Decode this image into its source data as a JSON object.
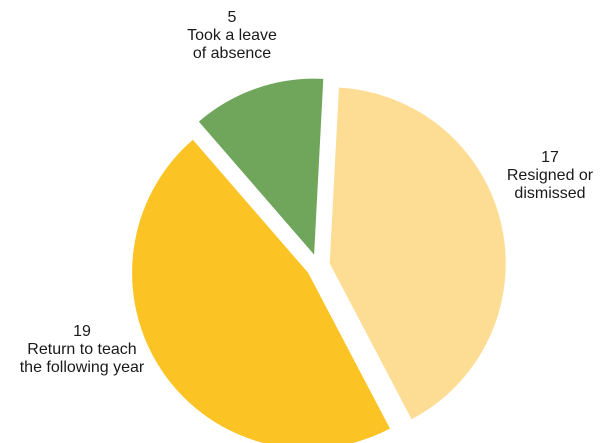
{
  "chart_data": {
    "type": "pie",
    "exploded": true,
    "slices": [
      {
        "value": 17,
        "value_label": "17",
        "label_lines": [
          "Resigned or",
          "dismissed"
        ],
        "color": "#FDDD94"
      },
      {
        "value": 19,
        "value_label": "19",
        "label_lines": [
          "Return to teach",
          "the following year"
        ],
        "color": "#FBC323"
      },
      {
        "value": 5,
        "value_label": "5",
        "label_lines": [
          "Took a leave",
          "of absence"
        ],
        "color": "#6FA65C"
      }
    ]
  }
}
